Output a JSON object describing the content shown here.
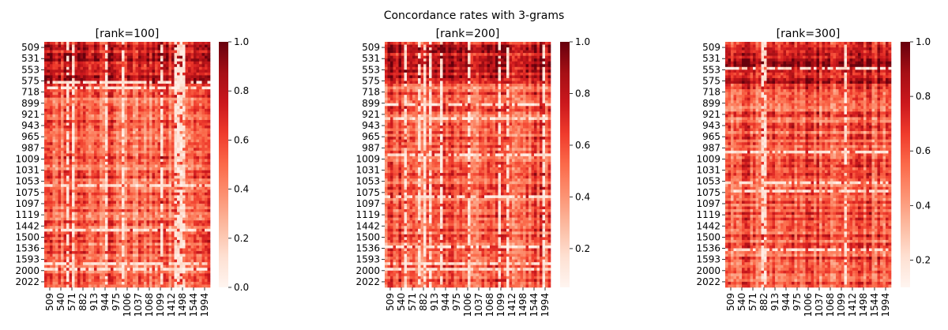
{
  "figure_title": "Concordance rates with 3-grams",
  "chart_data": [
    {
      "type": "heatmap",
      "title": "[rank=100]",
      "y_tick_labels": [
        "509",
        "531",
        "553",
        "575",
        "718",
        "899",
        "921",
        "943",
        "965",
        "987",
        "1009",
        "1031",
        "1053",
        "1075",
        "1097",
        "1119",
        "1442",
        "1500",
        "1536",
        "1593",
        "2000",
        "2022"
      ],
      "x_tick_labels": [
        "509",
        "540",
        "571",
        "882",
        "913",
        "944",
        "975",
        "1006",
        "1037",
        "1068",
        "1099",
        "1412",
        "1498",
        "1544",
        "1994"
      ],
      "colorbar": {
        "min": 0.0,
        "max": 1.0,
        "ticks": [
          "0.0",
          "0.2",
          "0.4",
          "0.6",
          "0.8",
          "1.0"
        ],
        "tick_values": [
          0.0,
          0.2,
          0.4,
          0.6,
          0.8,
          1.0
        ]
      },
      "colormap": "Reds"
    },
    {
      "type": "heatmap",
      "title": "[rank=200]",
      "y_tick_labels": [
        "509",
        "531",
        "553",
        "575",
        "718",
        "899",
        "921",
        "943",
        "965",
        "987",
        "1009",
        "1031",
        "1053",
        "1075",
        "1097",
        "1119",
        "1442",
        "1500",
        "1536",
        "1593",
        "2000",
        "2022"
      ],
      "x_tick_labels": [
        "509",
        "540",
        "571",
        "882",
        "913",
        "944",
        "975",
        "1006",
        "1037",
        "1068",
        "1099",
        "1412",
        "1498",
        "1544",
        "1994"
      ],
      "colorbar": {
        "min": 0.05,
        "max": 1.0,
        "ticks": [
          "0.2",
          "0.4",
          "0.6",
          "0.8",
          "1.0"
        ],
        "tick_values": [
          0.2,
          0.4,
          0.6,
          0.8,
          1.0
        ]
      },
      "colormap": "Reds"
    },
    {
      "type": "heatmap",
      "title": "[rank=300]",
      "y_tick_labels": [
        "509",
        "531",
        "553",
        "575",
        "718",
        "899",
        "921",
        "943",
        "965",
        "987",
        "1009",
        "1031",
        "1053",
        "1075",
        "1097",
        "1119",
        "1442",
        "1500",
        "1536",
        "1593",
        "2000",
        "2022"
      ],
      "x_tick_labels": [
        "509",
        "540",
        "571",
        "882",
        "913",
        "944",
        "975",
        "1006",
        "1037",
        "1068",
        "1099",
        "1412",
        "1498",
        "1544",
        "1994"
      ],
      "colorbar": {
        "min": 0.1,
        "max": 1.0,
        "ticks": [
          "0.2",
          "0.4",
          "0.6",
          "0.8",
          "1.0"
        ],
        "tick_values": [
          0.2,
          0.4,
          0.6,
          0.8,
          1.0
        ]
      },
      "colormap": "Reds"
    }
  ]
}
